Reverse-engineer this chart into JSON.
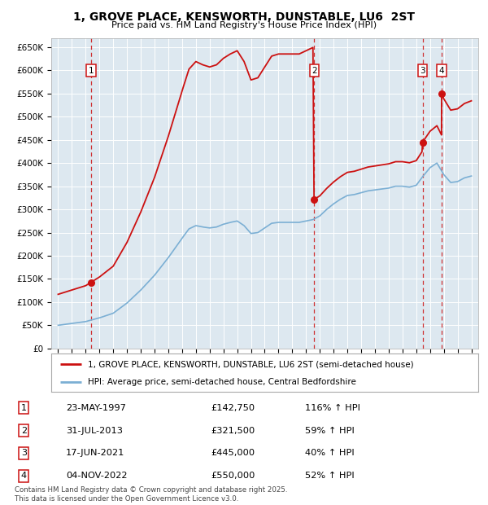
{
  "title": "1, GROVE PLACE, KENSWORTH, DUNSTABLE, LU6  2ST",
  "subtitle": "Price paid vs. HM Land Registry's House Price Index (HPI)",
  "background_color": "#dde8f0",
  "red_line_label": "1, GROVE PLACE, KENSWORTH, DUNSTABLE, LU6 2ST (semi-detached house)",
  "blue_line_label": "HPI: Average price, semi-detached house, Central Bedfordshire",
  "footer": "Contains HM Land Registry data © Crown copyright and database right 2025.\nThis data is licensed under the Open Government Licence v3.0.",
  "transactions": [
    {
      "num": 1,
      "date": "23-MAY-1997",
      "price": 142750,
      "pct": "116%",
      "dir": "↑"
    },
    {
      "num": 2,
      "date": "31-JUL-2013",
      "price": 321500,
      "pct": "59%",
      "dir": "↑"
    },
    {
      "num": 3,
      "date": "17-JUN-2021",
      "price": 445000,
      "pct": "40%",
      "dir": "↑"
    },
    {
      "num": 4,
      "date": "04-NOV-2022",
      "price": 550000,
      "pct": "52%",
      "dir": "↑"
    }
  ],
  "transaction_years": [
    1997.39,
    2013.58,
    2021.46,
    2022.84
  ],
  "transaction_prices": [
    142750,
    321500,
    445000,
    550000
  ],
  "ylim": [
    0,
    670000
  ],
  "xlim": [
    1994.5,
    2025.5
  ],
  "yticks": [
    0,
    50000,
    100000,
    150000,
    200000,
    250000,
    300000,
    350000,
    400000,
    450000,
    500000,
    550000,
    600000,
    650000
  ],
  "ytick_labels": [
    "£0",
    "£50K",
    "£100K",
    "£150K",
    "£200K",
    "£250K",
    "£300K",
    "£350K",
    "£400K",
    "£450K",
    "£500K",
    "£550K",
    "£600K",
    "£650K"
  ],
  "xticks": [
    1995,
    1996,
    1997,
    1998,
    1999,
    2000,
    2001,
    2002,
    2003,
    2004,
    2005,
    2006,
    2007,
    2008,
    2009,
    2010,
    2011,
    2012,
    2013,
    2014,
    2015,
    2016,
    2017,
    2018,
    2019,
    2020,
    2021,
    2022,
    2023,
    2024,
    2025
  ]
}
